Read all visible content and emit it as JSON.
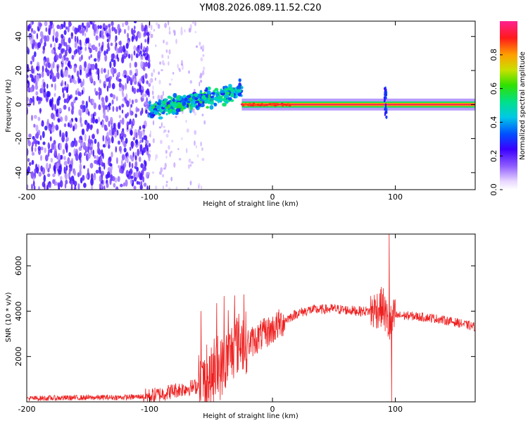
{
  "title": "YM08.2026.089.11.52.C20",
  "chart_data": [
    {
      "type": "heatmap",
      "panel": "top",
      "xlabel": "Height of straight line (km)",
      "ylabel": "Frequency (Hz)",
      "xlim": [
        -200,
        165
      ],
      "ylim": [
        -50,
        49
      ],
      "xticks": [
        -200,
        -100,
        0,
        100
      ],
      "yticks": [
        -40,
        -20,
        0,
        20,
        40
      ],
      "colorbar": {
        "label": "Normalized spectral amplitude",
        "range": [
          0,
          1
        ],
        "ticks": [
          "0.0",
          "0.2",
          "0.4",
          "0.6",
          "0.8"
        ],
        "tick_values": [
          0.0,
          0.2,
          0.4,
          0.6,
          0.8
        ]
      },
      "features": [
        {
          "desc": "scattered noise",
          "x_range": [
            -200,
            -100
          ],
          "f_range": [
            -50,
            49
          ],
          "amplitude": 0.15
        },
        {
          "desc": "rising streak",
          "x_range": [
            -100,
            -25
          ],
          "f_start": -3,
          "f_end": 8,
          "amplitude": 0.35
        },
        {
          "desc": "narrow carrier",
          "x_range": [
            -25,
            165
          ],
          "f": 0,
          "amplitude": 0.95
        },
        {
          "desc": "spike",
          "x": 92,
          "f_range": [
            -8,
            10
          ],
          "amplitude": 0.3
        }
      ]
    },
    {
      "type": "line",
      "panel": "bottom",
      "xlabel": "Height of straight line (km)",
      "ylabel": "SNR (10 * v/v)",
      "xlim": [
        -200,
        165
      ],
      "ylim": [
        0,
        7400
      ],
      "xticks": [
        -200,
        -100,
        0,
        100
      ],
      "yticks": [
        2000,
        4000,
        6000
      ],
      "color": "#ee2020",
      "series": [
        {
          "name": "SNR",
          "x": [
            -200,
            -160,
            -120,
            -100,
            -90,
            -80,
            -70,
            -60,
            -50,
            -40,
            -30,
            -25,
            -20,
            -15,
            -10,
            0,
            10,
            20,
            30,
            50,
            70,
            80,
            85,
            90,
            95,
            100,
            110,
            130,
            150,
            165
          ],
          "y": [
            150,
            180,
            200,
            250,
            350,
            500,
            600,
            700,
            1000,
            1600,
            2500,
            2700,
            2600,
            2700,
            2900,
            3200,
            3600,
            3900,
            4050,
            4100,
            4000,
            4000,
            4100,
            4200,
            3300,
            3800,
            3800,
            3700,
            3500,
            3300
          ]
        }
      ],
      "annotations": [
        {
          "desc": "peak",
          "x": 95,
          "y": 7400
        },
        {
          "desc": "dip",
          "x": 97,
          "y": 0
        }
      ]
    }
  ]
}
